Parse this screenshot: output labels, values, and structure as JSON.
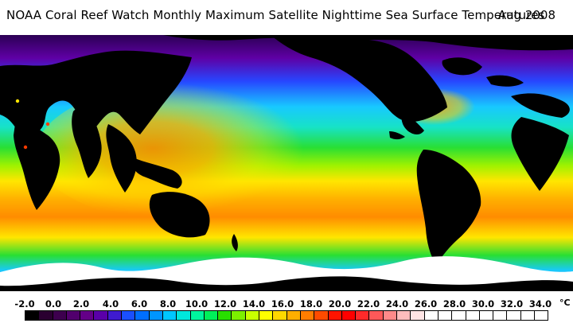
{
  "title": "NOAA Coral Reef Watch Monthly Maximum Satellite Nighttime Sea Surface Temperatures",
  "period": "Aug 2008",
  "legend": {
    "labels": [
      "-2.0",
      "0.0",
      "2.0",
      "4.0",
      "6.0",
      "8.0",
      "10.0",
      "12.0",
      "14.0",
      "16.0",
      "18.0",
      "20.0",
      "22.0",
      "24.0",
      "26.0",
      "28.0",
      "30.0",
      "32.0",
      "34.0"
    ],
    "unit": "°C",
    "colors": [
      "#000000",
      "#2a0030",
      "#3d004e",
      "#51006d",
      "#640088",
      "#5a00a8",
      "#3f1bd0",
      "#1b4fff",
      "#006fff",
      "#0095ff",
      "#00c7ff",
      "#00e7dc",
      "#00f59e",
      "#00f05a",
      "#28df00",
      "#7cf000",
      "#c9ff00",
      "#ffff00",
      "#ffd800",
      "#ffae00",
      "#ff7d00",
      "#ff4b00",
      "#ff1400",
      "#ff0000",
      "#ff2a2a",
      "#ff5959",
      "#ff8a8a",
      "#ffbdbd",
      "#ffe5e5",
      "#ffffff",
      "#ffffff",
      "#ffffff",
      "#ffffff",
      "#ffffff",
      "#ffffff",
      "#ffffff",
      "#ffffff",
      "#ffffff"
    ]
  },
  "map": {
    "colors": {
      "land": "#000000",
      "ice": "#ffffff",
      "deep_purple": "#2b0054",
      "purple": "#5f00a5",
      "blue": "#2746ff",
      "cyan": "#18c9ff",
      "teal": "#17e2c6",
      "green": "#29df33",
      "yellow_green": "#9ff200",
      "yellow": "#ffe600",
      "orange": "#ffb000",
      "warm_orange": "#ff8c00",
      "red": "#ff3b00"
    }
  }
}
